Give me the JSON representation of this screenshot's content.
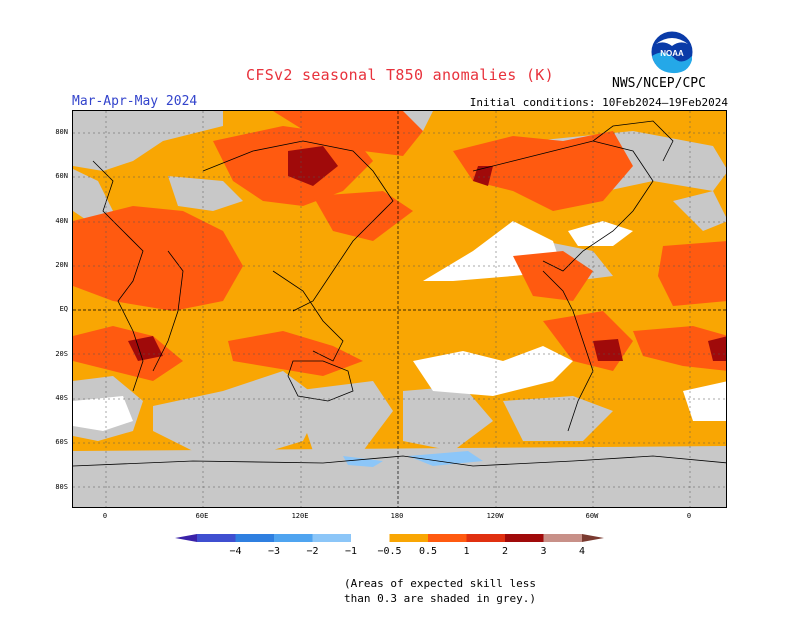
{
  "title": "CFSv2 seasonal T850 anomalies (K)",
  "season": "Mar-Apr-May 2024",
  "initial_conditions": "Initial conditions: 10Feb2024–19Feb2024",
  "agency": "NWS/NCEP/CPC",
  "logo_text": "NOAA",
  "lat_labels": [
    "80N",
    "60N",
    "40N",
    "20N",
    "EQ",
    "20S",
    "40S",
    "60S",
    "80S"
  ],
  "lon_labels": [
    "0",
    "60E",
    "120E",
    "180",
    "120W",
    "60W",
    "0"
  ],
  "colorbar": {
    "labels": [
      "−4",
      "−3",
      "−2",
      "−1",
      "−0.5",
      "0.5",
      "1",
      "2",
      "3",
      "4"
    ],
    "colors": [
      "#3a22a8",
      "#3f4fd0",
      "#2f7fe0",
      "#4fa4f0",
      "#8cc6f8",
      "#ffffff",
      "#f9a603",
      "#ff5a10",
      "#e03010",
      "#a00a0a",
      "#c89088",
      "#7a3a30"
    ]
  },
  "grey_mask_color": "#c8c8c8",
  "note_line1": "(Areas of expected skill less",
  "note_line2": "than 0.3 are shaded in grey.)"
}
